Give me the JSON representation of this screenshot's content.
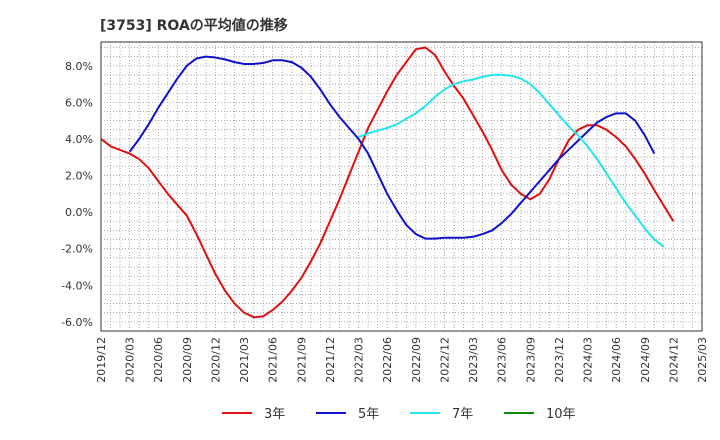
{
  "chart_data": {
    "type": "line",
    "title": "[3753]  ROAの平均値の推移",
    "xlabel": "",
    "ylabel": "",
    "ylim": [
      -6.5,
      9.3
    ],
    "yticks": [
      -6,
      -4,
      -2,
      0,
      2,
      4,
      6,
      8
    ],
    "ytick_labels": [
      "-6.0%",
      "-4.0%",
      "-2.0%",
      "0.0%",
      "2.0%",
      "4.0%",
      "6.0%",
      "8.0%"
    ],
    "xticks": [
      "2019/12",
      "2020/03",
      "2020/06",
      "2020/09",
      "2020/12",
      "2021/03",
      "2021/06",
      "2021/09",
      "2021/12",
      "2022/03",
      "2022/06",
      "2022/09",
      "2022/12",
      "2023/03",
      "2023/06",
      "2023/09",
      "2023/12",
      "2024/03",
      "2024/06",
      "2024/09",
      "2024/12",
      "2025/03"
    ],
    "grid": true,
    "legend_position": "bottom",
    "series": [
      {
        "name": "3年",
        "color": "#dd1111",
        "start": "2019/12",
        "values": [
          4.0,
          3.6,
          3.4,
          3.2,
          2.9,
          2.4,
          1.7,
          1.0,
          0.4,
          -0.2,
          -1.2,
          -2.3,
          -3.4,
          -4.3,
          -5.0,
          -5.5,
          -5.75,
          -5.7,
          -5.35,
          -4.9,
          -4.3,
          -3.6,
          -2.7,
          -1.7,
          -0.5,
          0.7,
          2.0,
          3.3,
          4.6,
          5.6,
          6.6,
          7.5,
          8.2,
          8.9,
          9.0,
          8.6,
          7.7,
          6.9,
          6.2,
          5.3,
          4.4,
          3.4,
          2.3,
          1.5,
          1.0,
          0.7,
          1.0,
          1.8,
          2.9,
          3.9,
          4.5,
          4.75,
          4.75,
          4.5,
          4.1,
          3.6,
          2.9,
          2.1,
          1.2,
          0.35,
          -0.5
        ]
      },
      {
        "name": "5年",
        "color": "#1111cc",
        "start": "2020/03",
        "values": [
          3.3,
          4.0,
          4.8,
          5.7,
          6.5,
          7.3,
          8.0,
          8.4,
          8.5,
          8.45,
          8.35,
          8.2,
          8.1,
          8.1,
          8.15,
          8.3,
          8.3,
          8.2,
          7.9,
          7.4,
          6.7,
          5.9,
          5.2,
          4.6,
          4.0,
          3.2,
          2.1,
          1.0,
          0.1,
          -0.7,
          -1.2,
          -1.45,
          -1.45,
          -1.4,
          -1.4,
          -1.4,
          -1.35,
          -1.2,
          -1.0,
          -0.6,
          -0.1,
          0.5,
          1.1,
          1.7,
          2.3,
          2.9,
          3.4,
          3.9,
          4.4,
          4.9,
          5.2,
          5.4,
          5.4,
          5.0,
          4.2,
          3.2
        ]
      },
      {
        "name": "7年",
        "color": "#22e5f0",
        "start": "2022/03",
        "values": [
          4.1,
          4.3,
          4.45,
          4.6,
          4.8,
          5.1,
          5.4,
          5.8,
          6.3,
          6.7,
          7.0,
          7.15,
          7.25,
          7.4,
          7.5,
          7.5,
          7.45,
          7.3,
          7.0,
          6.5,
          5.9,
          5.3,
          4.7,
          4.2,
          3.6,
          2.9,
          2.1,
          1.3,
          0.5,
          -0.2,
          -0.9,
          -1.5,
          -1.9
        ]
      },
      {
        "name": "10年",
        "color": "#118811",
        "start": "",
        "values": []
      }
    ]
  }
}
